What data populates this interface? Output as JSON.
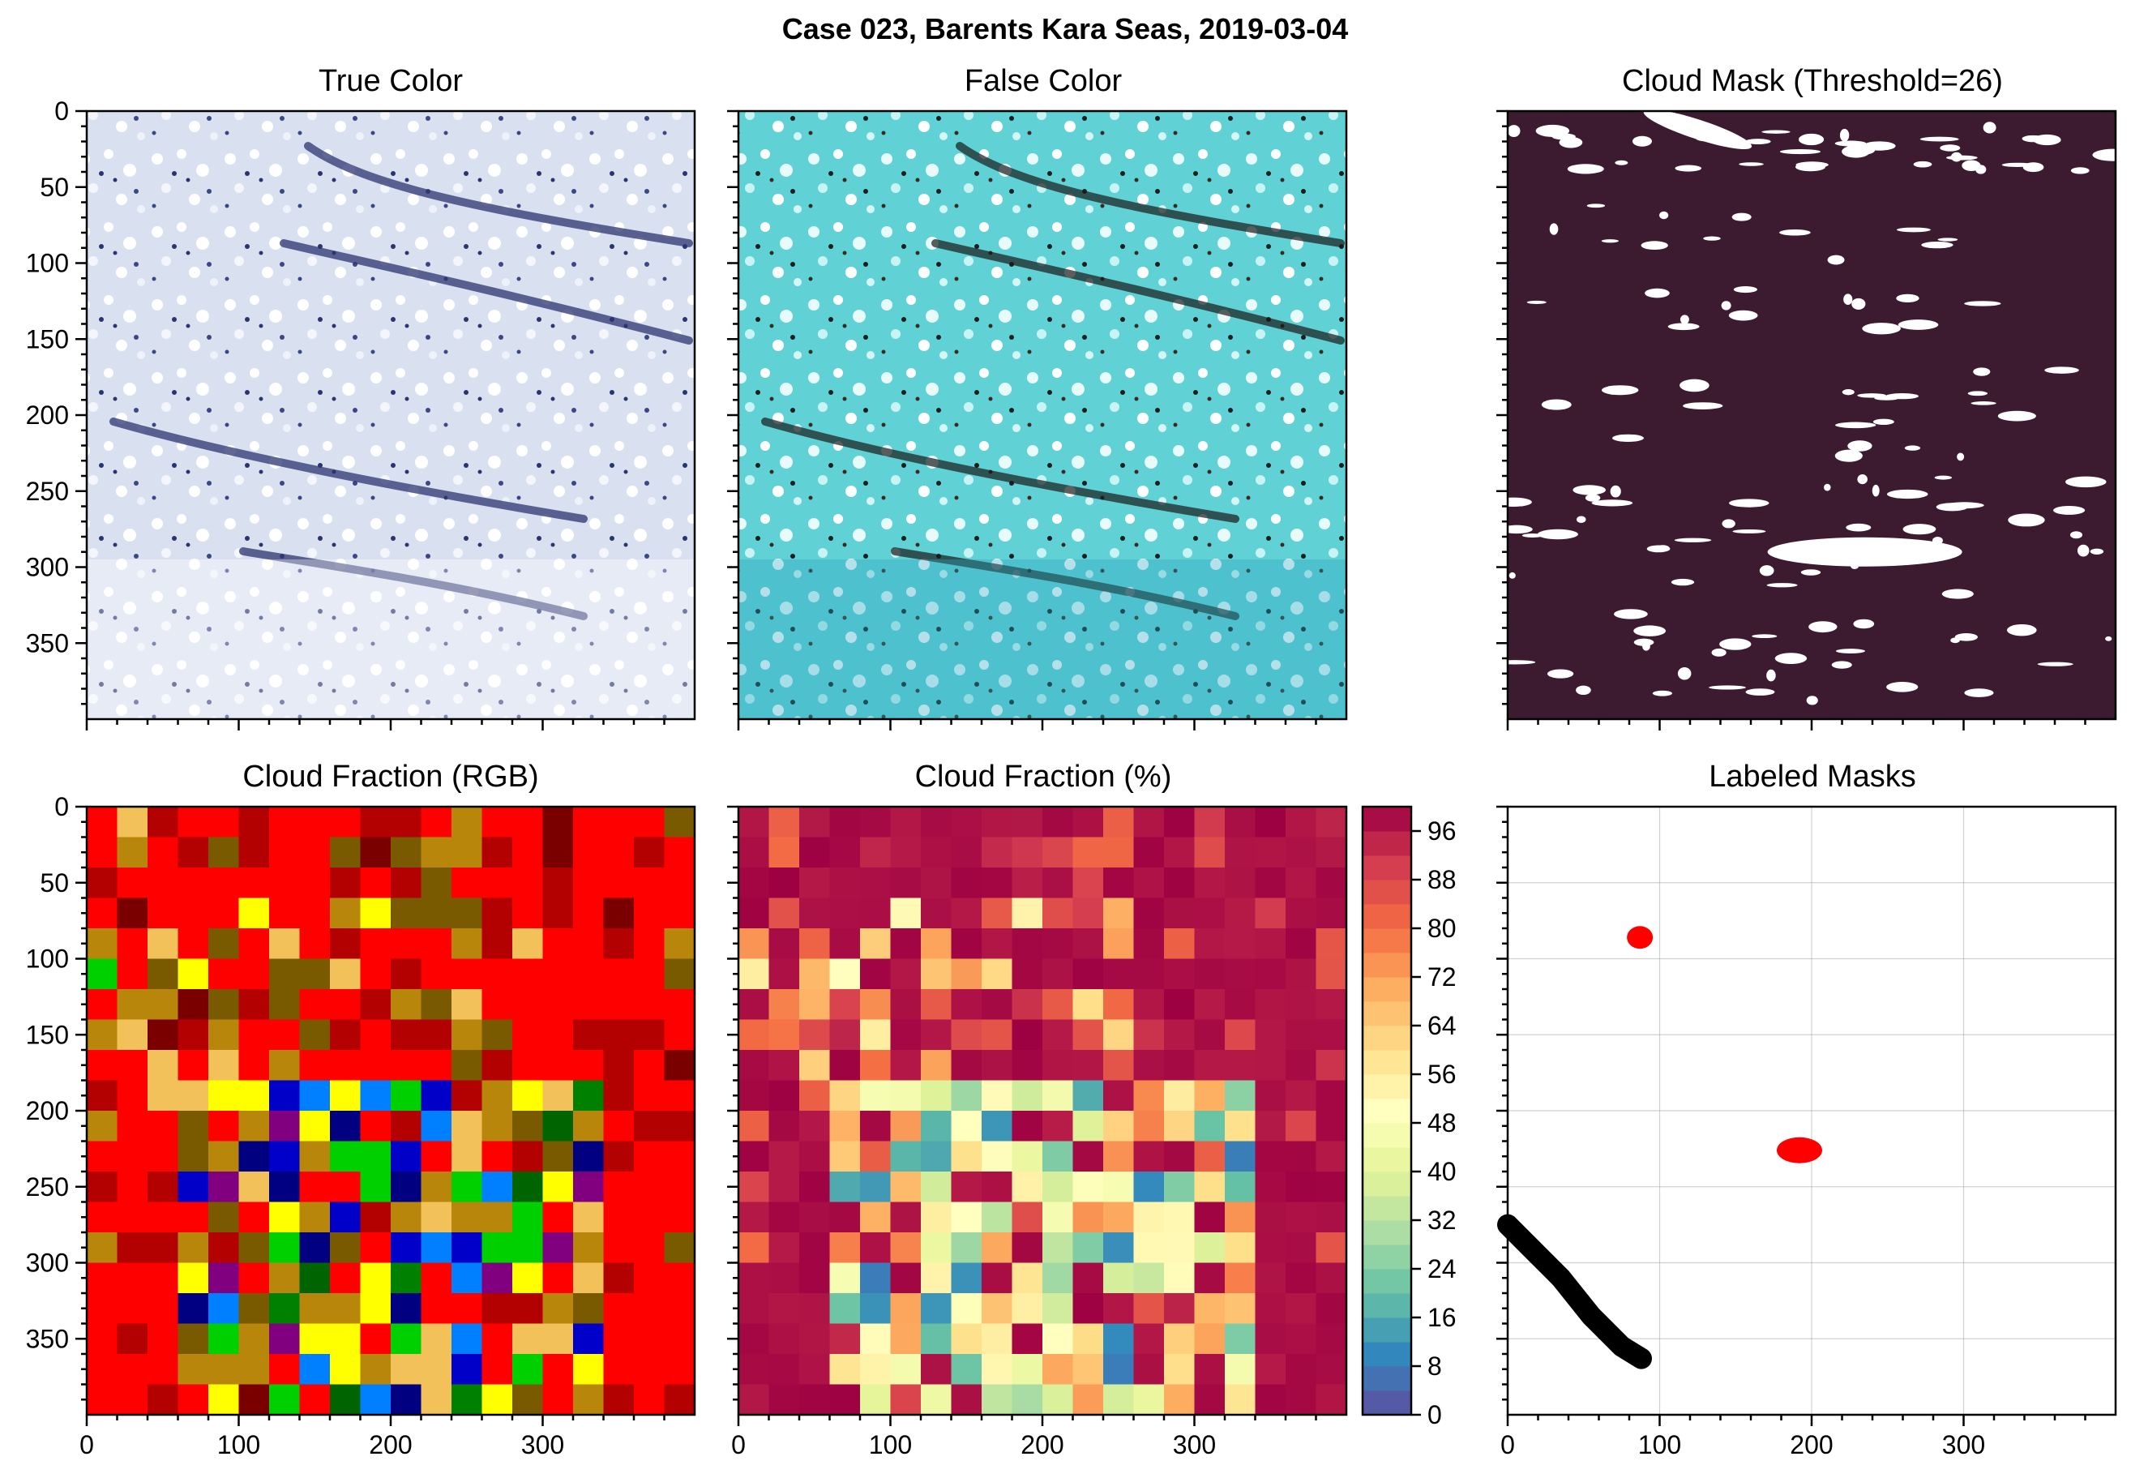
{
  "figure": {
    "suptitle": "Case 023, Barents Kara Seas, 2019-03-04"
  },
  "chart_data": [
    {
      "id": "true-color",
      "type": "image",
      "title": "True Color",
      "ylim": [
        400,
        0
      ],
      "yticks": [
        0,
        50,
        100,
        150,
        200,
        250,
        300,
        350
      ],
      "xticks_labeled": false,
      "description_colors": {
        "ice": "#dde4f2",
        "cloud": "#ffffff",
        "open_water": "#1e2a6a"
      }
    },
    {
      "id": "false-color",
      "type": "image",
      "title": "False Color",
      "colors": {
        "ice": "#5fd9d9",
        "cloud": "#e6fbfa",
        "open_water": "#1a1a1a"
      }
    },
    {
      "id": "cloud-mask",
      "type": "image",
      "title": "Cloud Mask (Threshold=26)",
      "colors": {
        "background": "#3c1a30",
        "cloud": "#ffffff"
      }
    },
    {
      "id": "cloud-fraction-rgb",
      "type": "heatmap",
      "title": "Cloud Fraction (RGB)",
      "xticks": [
        0,
        100,
        200,
        300
      ],
      "yticks": [
        0,
        50,
        100,
        150,
        200,
        250,
        300,
        350
      ],
      "xlim": [
        0,
        400
      ],
      "ylim": [
        400,
        0
      ],
      "grid_size": 20,
      "palette": [
        "#ff0000",
        "#b30000",
        "#7a0000",
        "#7a5a00",
        "#f2c15a",
        "#b8860b",
        "#ffff00",
        "#00d000",
        "#008000",
        "#006400",
        "#0080ff",
        "#0000c8",
        "#000080",
        "#800080"
      ]
    },
    {
      "id": "cloud-fraction-pct",
      "type": "heatmap",
      "title": "Cloud Fraction (%)",
      "xticks": [
        0,
        100,
        200,
        300
      ],
      "xlim": [
        0,
        400
      ],
      "ylim": [
        400,
        0
      ],
      "grid_size": 20,
      "colorbar": {
        "range": [
          0,
          100
        ],
        "ticks": [
          0,
          8,
          16,
          24,
          32,
          40,
          48,
          56,
          64,
          72,
          80,
          88,
          96
        ],
        "colormap": "Spectral_r"
      }
    },
    {
      "id": "labeled-masks",
      "type": "scatter",
      "title": "Labeled Masks",
      "xticks": [
        0,
        100,
        200,
        300
      ],
      "xlim": [
        0,
        400
      ],
      "ylim": [
        400,
        0
      ],
      "grid": true,
      "objects": [
        {
          "color": "#ff0000",
          "center": [
            87,
            86
          ],
          "size": "small"
        },
        {
          "color": "#ff0000",
          "center": [
            192,
            226
          ],
          "size": "small"
        },
        {
          "color": "#000000",
          "path": [
            [
              0,
              275
            ],
            [
              15,
              290
            ],
            [
              35,
              310
            ],
            [
              55,
              335
            ],
            [
              75,
              355
            ],
            [
              88,
              363
            ]
          ],
          "size": "elongated"
        }
      ]
    }
  ]
}
